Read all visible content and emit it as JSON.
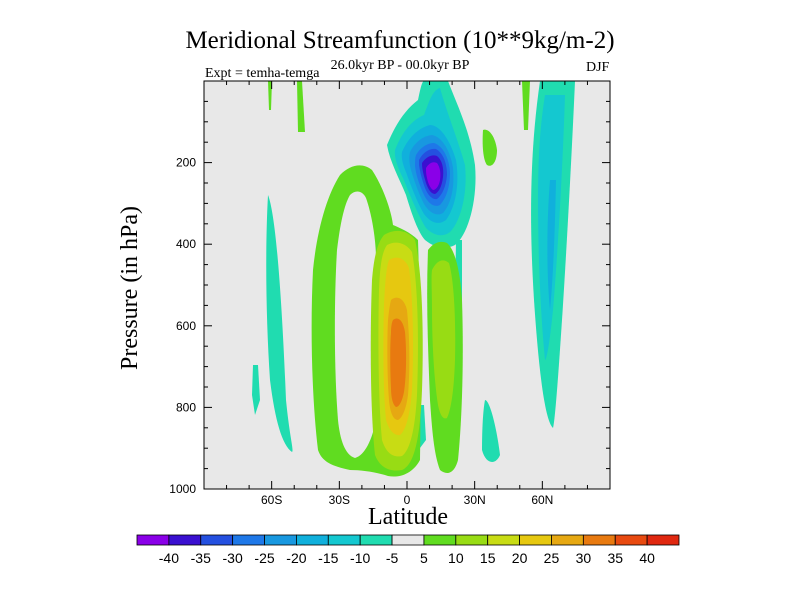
{
  "chart_data": {
    "type": "heatmap",
    "title": "Meridional Streamfunction (10**9kg/m-2)",
    "subtitle": "26.0kyr BP - 00.0kyr BP",
    "experiment_label": "Expt = temha-temga",
    "season": "DJF",
    "xlabel": "Latitude",
    "ylabel": "Pressure (in hPa)",
    "xlim": [
      -90,
      90
    ],
    "ylim": [
      1000,
      0
    ],
    "x_ticks": [
      {
        "value": -60,
        "label": "60S"
      },
      {
        "value": -30,
        "label": "30S"
      },
      {
        "value": 0,
        "label": "0"
      },
      {
        "value": 30,
        "label": "30N"
      },
      {
        "value": 60,
        "label": "60N"
      }
    ],
    "y_ticks": [
      {
        "value": 200,
        "label": "200"
      },
      {
        "value": 400,
        "label": "400"
      },
      {
        "value": 600,
        "label": "600"
      },
      {
        "value": 800,
        "label": "800"
      },
      {
        "value": 1000,
        "label": "1000"
      }
    ],
    "colorbar": {
      "levels": [
        -40,
        -35,
        -30,
        -25,
        -20,
        -15,
        -10,
        -5,
        5,
        10,
        15,
        20,
        25,
        30,
        35,
        40
      ],
      "colors": [
        "#8a00e8",
        "#3a10d0",
        "#2450e0",
        "#1e78e8",
        "#1898e0",
        "#10b0dc",
        "#14c8d0",
        "#20dcb0",
        "#e8e8e8",
        "#60dc20",
        "#98dc14",
        "#c8dc14",
        "#e6c810",
        "#e6a812",
        "#e87a10",
        "#e84a10",
        "#e02810"
      ]
    },
    "contour_regions": [
      {
        "name": "strong-negative-core",
        "value": -40,
        "lat": [
          5,
          18
        ],
        "plev": [
          150,
          300
        ]
      },
      {
        "name": "negative-upper-cell",
        "value": -20,
        "lat": [
          -5,
          25
        ],
        "plev": [
          100,
          330
        ]
      },
      {
        "name": "weak-negative-north",
        "value": -10,
        "lat": [
          50,
          70
        ],
        "plev": [
          0,
          820
        ]
      },
      {
        "name": "strong-positive-core",
        "value": 35,
        "lat": [
          -10,
          0
        ],
        "plev": [
          550,
          800
        ]
      },
      {
        "name": "positive-cell",
        "value": 20,
        "lat": [
          -12,
          5
        ],
        "plev": [
          400,
          920
        ]
      },
      {
        "name": "weak-positive-band",
        "value": 5,
        "lat": [
          -40,
          -8
        ],
        "plev": [
          200,
          950
        ]
      }
    ],
    "background_value": 0
  }
}
